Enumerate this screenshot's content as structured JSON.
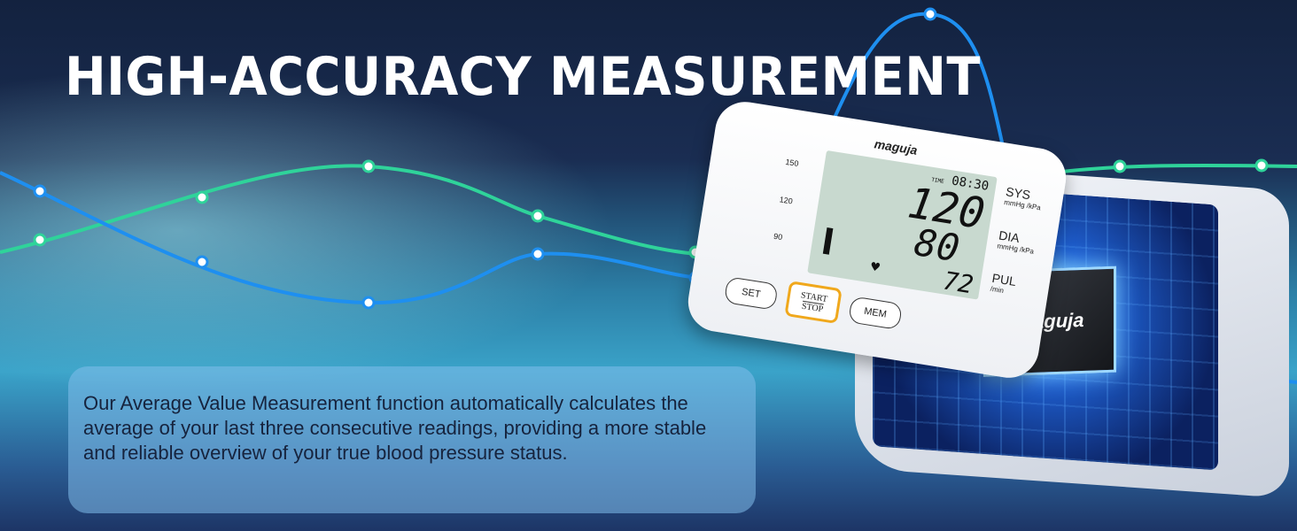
{
  "headline": "HIGH-ACCURACY MEASUREMENT",
  "description": "Our Average Value Measurement function automatically calculates the average of your last three consecutive readings, providing a more stable and reliable overview of your true blood pressure status.",
  "device": {
    "brand": "maguja",
    "time_label": "TIME",
    "time": "08:30",
    "systolic": "120",
    "diastolic": "80",
    "pulse": "72",
    "scale": [
      "150",
      "120",
      "90"
    ],
    "sys_label": "SYS",
    "dia_label": "DIA",
    "pul_label": "PUL",
    "unit": "mmHg /kPa",
    "pulse_unit": "/min",
    "buttons": {
      "set": "SET",
      "start": "START",
      "stop": "STOP",
      "mem": "MEM"
    },
    "chip_brand": "maguja"
  },
  "colors": {
    "green_wave": "#2fd39a",
    "blue_wave": "#1e8ff0",
    "start_button": "#f0a81c"
  }
}
